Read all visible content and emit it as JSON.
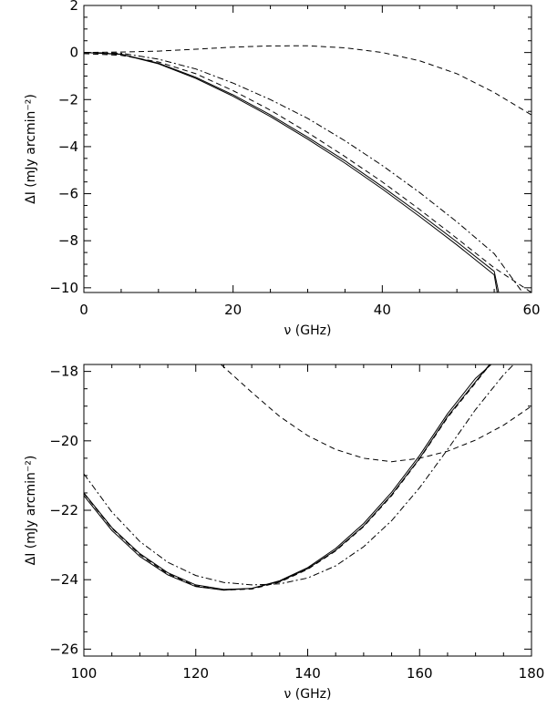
{
  "chart_data": [
    {
      "type": "line",
      "title": "",
      "xlabel": "ν (GHz)",
      "ylabel": "ΔI (mJy arcmin⁻²)",
      "xlim": [
        0,
        60
      ],
      "ylim": [
        -10.2,
        2
      ],
      "xticks": [
        0,
        20,
        40,
        60
      ],
      "yticks": [
        2,
        0,
        -2,
        -4,
        -6,
        -8,
        -10
      ],
      "grid": false,
      "legend": "none",
      "series": [
        {
          "style": "solid",
          "x": [
            0,
            5,
            10,
            15,
            20,
            25,
            30,
            35,
            40,
            45,
            50,
            55,
            55.6
          ],
          "y": [
            0,
            -0.07,
            -0.45,
            -1.05,
            -1.8,
            -2.65,
            -3.6,
            -4.6,
            -5.7,
            -6.85,
            -8.05,
            -9.3,
            -10.2
          ]
        },
        {
          "style": "solid",
          "x": [
            0,
            5,
            10,
            15,
            20,
            25,
            30,
            35,
            40,
            45,
            50,
            55,
            55.4
          ],
          "y": [
            0,
            -0.08,
            -0.48,
            -1.1,
            -1.86,
            -2.72,
            -3.68,
            -4.7,
            -5.8,
            -6.97,
            -8.18,
            -9.45,
            -10.2
          ]
        },
        {
          "style": "dashed",
          "x": [
            0,
            5,
            10,
            15,
            20,
            25,
            30,
            35,
            40,
            45,
            50,
            55,
            60
          ],
          "y": [
            -0.05,
            -0.12,
            -0.4,
            -0.9,
            -1.62,
            -2.45,
            -3.4,
            -4.42,
            -5.5,
            -6.67,
            -7.9,
            -9.15,
            -10.2
          ]
        },
        {
          "style": "dashdot",
          "x": [
            0,
            5,
            10,
            15,
            20,
            25,
            30,
            35,
            40,
            45,
            50,
            55,
            58.8
          ],
          "y": [
            0,
            -0.03,
            -0.28,
            -0.7,
            -1.3,
            -2.0,
            -2.8,
            -3.75,
            -4.8,
            -5.95,
            -7.2,
            -8.55,
            -10.2
          ]
        },
        {
          "style": "dashed",
          "x": [
            0,
            5,
            10,
            15,
            20,
            25,
            30,
            35,
            40,
            45,
            50,
            55,
            60
          ],
          "y": [
            0,
            0.02,
            0.06,
            0.14,
            0.23,
            0.28,
            0.29,
            0.2,
            0.0,
            -0.35,
            -0.9,
            -1.7,
            -2.65
          ]
        }
      ]
    },
    {
      "type": "line",
      "title": "",
      "xlabel": "ν (GHz)",
      "ylabel": "ΔI (mJy arcmin⁻²)",
      "xlim": [
        100,
        180
      ],
      "ylim": [
        -26.2,
        -17.8
      ],
      "xticks": [
        100,
        120,
        140,
        160,
        180
      ],
      "yticks": [
        -18,
        -20,
        -22,
        -24,
        -26
      ],
      "grid": false,
      "legend": "none",
      "series": [
        {
          "style": "solid",
          "x": [
            100,
            105,
            110,
            115,
            120,
            125,
            130,
            135,
            140,
            145,
            150,
            155,
            160,
            165,
            170,
            172.5
          ],
          "y": [
            -21.5,
            -22.5,
            -23.25,
            -23.8,
            -24.15,
            -24.28,
            -24.25,
            -24.05,
            -23.68,
            -23.15,
            -22.45,
            -21.55,
            -20.5,
            -19.3,
            -18.3,
            -17.8
          ]
        },
        {
          "style": "solid",
          "x": [
            100,
            105,
            110,
            115,
            120,
            125,
            130,
            135,
            140,
            145,
            150,
            155,
            160,
            165,
            170,
            172.8
          ],
          "y": [
            -21.58,
            -22.58,
            -23.33,
            -23.86,
            -24.2,
            -24.3,
            -24.25,
            -24.03,
            -23.65,
            -23.1,
            -22.38,
            -21.48,
            -20.42,
            -19.22,
            -18.2,
            -17.8
          ]
        },
        {
          "style": "dashed",
          "x": [
            100,
            105,
            110,
            115,
            120,
            125,
            130,
            135,
            140,
            145,
            150,
            155,
            160,
            165,
            170,
            172.6
          ],
          "y": [
            -21.52,
            -22.52,
            -23.28,
            -23.83,
            -24.18,
            -24.3,
            -24.27,
            -24.07,
            -23.7,
            -23.17,
            -22.47,
            -21.58,
            -20.52,
            -19.33,
            -18.33,
            -17.8
          ]
        },
        {
          "style": "dashdot",
          "x": [
            100,
            105,
            110,
            115,
            120,
            125,
            130,
            135,
            140,
            145,
            150,
            155,
            160,
            165,
            170,
            175,
            176.8
          ],
          "y": [
            -20.95,
            -22.05,
            -22.9,
            -23.5,
            -23.88,
            -24.08,
            -24.15,
            -24.12,
            -23.95,
            -23.6,
            -23.05,
            -22.3,
            -21.35,
            -20.25,
            -19.1,
            -18.1,
            -17.8
          ]
        },
        {
          "style": "dashed",
          "x": [
            124.5,
            130,
            135,
            140,
            145,
            150,
            155,
            160,
            165,
            170,
            175,
            180
          ],
          "y": [
            -17.8,
            -18.6,
            -19.3,
            -19.85,
            -20.25,
            -20.5,
            -20.6,
            -20.5,
            -20.3,
            -19.98,
            -19.55,
            -19.0
          ]
        }
      ]
    }
  ]
}
